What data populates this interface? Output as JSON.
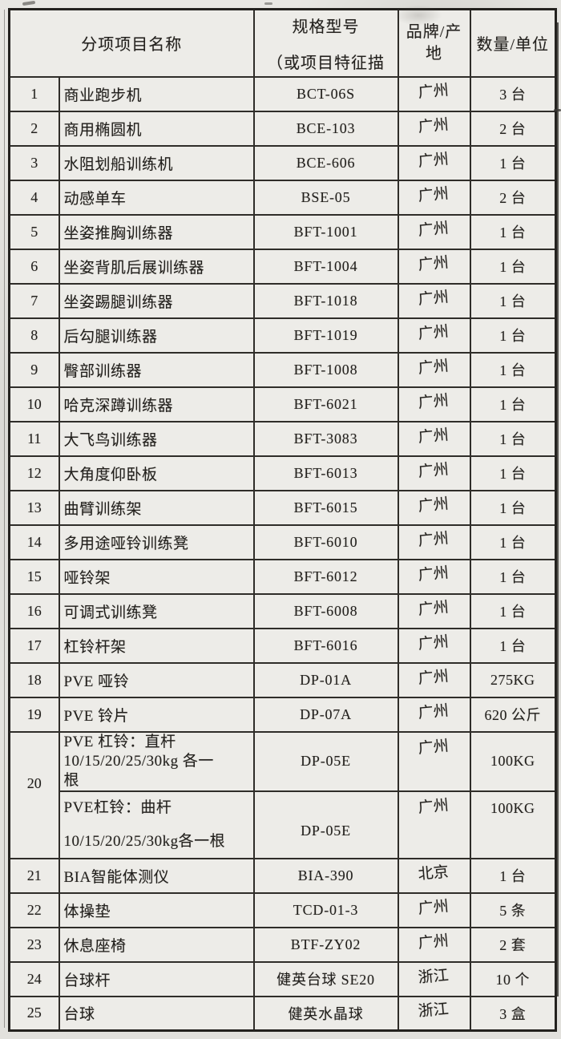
{
  "table": {
    "headers": {
      "item_name": "分项项目名称",
      "spec_line1": "规格型号",
      "spec_line2": "（或项目特征描",
      "brand_origin_line1": "品牌/产",
      "brand_origin_line2": "地",
      "qty_unit": "数量/单位"
    },
    "rows": [
      {
        "no": "1",
        "name": "商业跑步机",
        "model": "BCT-06S",
        "origin": "广州",
        "qty": "3 台"
      },
      {
        "no": "2",
        "name": "商用椭圆机",
        "model": "BCE-103",
        "origin": "广州",
        "qty": "2 台"
      },
      {
        "no": "3",
        "name": "水阻划船训练机",
        "model": "BCE-606",
        "origin": "广州",
        "qty": "1 台"
      },
      {
        "no": "4",
        "name": "动感单车",
        "model": "BSE-05",
        "origin": "广州",
        "qty": "2 台"
      },
      {
        "no": "5",
        "name": "坐姿推胸训练器",
        "model": "BFT-1001",
        "origin": "广州",
        "qty": "1 台"
      },
      {
        "no": "6",
        "name": "坐姿背肌后展训练器",
        "model": "BFT-1004",
        "origin": "广州",
        "qty": "1 台"
      },
      {
        "no": "7",
        "name": "坐姿踢腿训练器",
        "model": "BFT-1018",
        "origin": "广州",
        "qty": "1 台"
      },
      {
        "no": "8",
        "name": "后勾腿训练器",
        "model": "BFT-1019",
        "origin": "广州",
        "qty": "1 台"
      },
      {
        "no": "9",
        "name": "臀部训练器",
        "model": "BFT-1008",
        "origin": "广州",
        "qty": "1 台"
      },
      {
        "no": "10",
        "name": "哈克深蹲训练器",
        "model": "BFT-6021",
        "origin": "广州",
        "qty": "1 台"
      },
      {
        "no": "11",
        "name": "大飞鸟训练器",
        "model": "BFT-3083",
        "origin": "广州",
        "qty": "1 台"
      },
      {
        "no": "12",
        "name": "大角度仰卧板",
        "model": "BFT-6013",
        "origin": "广州",
        "qty": "1 台"
      },
      {
        "no": "13",
        "name": "曲臂训练架",
        "model": "BFT-6015",
        "origin": "广州",
        "qty": "1 台"
      },
      {
        "no": "14",
        "name": "多用途哑铃训练凳",
        "model": "BFT-6010",
        "origin": "广州",
        "qty": "1 台"
      },
      {
        "no": "15",
        "name": "哑铃架",
        "model": "BFT-6012",
        "origin": "广州",
        "qty": "1 台"
      },
      {
        "no": "16",
        "name": "可调式训练凳",
        "model": "BFT-6008",
        "origin": "广州",
        "qty": "1 台"
      },
      {
        "no": "17",
        "name": "杠铃杆架",
        "model": "BFT-6016",
        "origin": "广州",
        "qty": "1 台"
      },
      {
        "no": "18",
        "name": "PVE 哑铃",
        "model": "DP-01A",
        "origin": "广州",
        "qty": "275KG"
      },
      {
        "no": "19",
        "name": "PVE 铃片",
        "model": "DP-07A",
        "origin": "广州",
        "qty": "620 公斤"
      },
      {
        "no": "20",
        "subrows": [
          {
            "name_lines": [
              "PVE 杠铃：直杆",
              "10/15/20/25/30kg 各一",
              "根"
            ],
            "model": "DP-05E",
            "origin": "广州",
            "qty": "100KG"
          },
          {
            "name_lines": [
              "PVE杠铃：曲杆",
              "10/15/20/25/30kg各一根"
            ],
            "model": "DP-05E",
            "origin": "广州",
            "qty": "100KG"
          }
        ]
      },
      {
        "no": "21",
        "name": "BIA智能体测仪",
        "model": "BIA-390",
        "origin": "北京",
        "qty": "1 台"
      },
      {
        "no": "22",
        "name": "体操垫",
        "model": "TCD-01-3",
        "origin": "广州",
        "qty": "5 条"
      },
      {
        "no": "23",
        "name": "休息座椅",
        "model": "BTF-ZY02",
        "origin": "广州",
        "qty": "2 套"
      },
      {
        "no": "24",
        "name": "台球杆",
        "model": "健英台球 SE20",
        "origin": "浙江",
        "qty": "10 个"
      },
      {
        "no": "25",
        "name": "台球",
        "model": "健英水晶球",
        "origin": "浙江",
        "qty": "3 盒"
      }
    ]
  }
}
